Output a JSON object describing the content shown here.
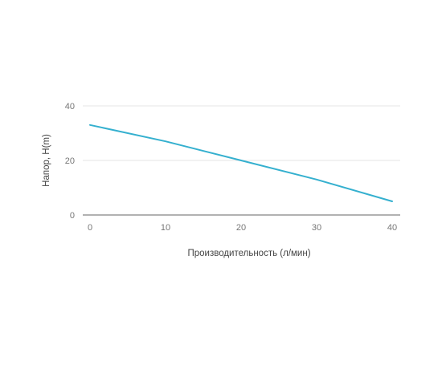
{
  "chart_data": {
    "type": "line",
    "xlabel": "Производительность (л/мин)",
    "ylabel": "Напор, H(m)",
    "xlim": [
      0,
      40
    ],
    "ylim": [
      0,
      40
    ],
    "x_ticks": [
      "0",
      "10",
      "20",
      "30",
      "40"
    ],
    "y_ticks": [
      "0",
      "20",
      "40"
    ],
    "grid": "horizontal",
    "series": [
      {
        "color": "#35b0cf",
        "x": [
          0,
          10,
          20,
          30,
          40
        ],
        "y": [
          33,
          27,
          20,
          13,
          5
        ]
      }
    ]
  }
}
